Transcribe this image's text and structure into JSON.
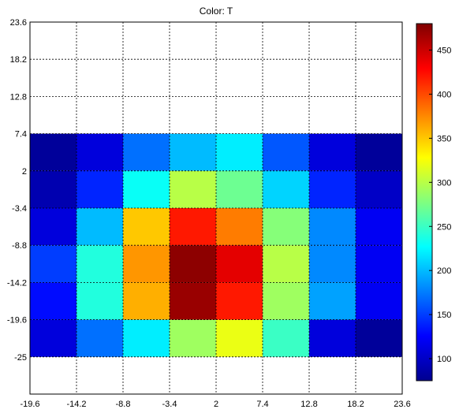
{
  "chart_data": {
    "type": "heatmap",
    "title": "Color: T",
    "xlabel": "",
    "ylabel": "",
    "x_ticks": [
      "-19.6",
      "-14.2",
      "-8.8",
      "-3.4",
      "2",
      "7.4",
      "12.8",
      "18.2",
      "23.6"
    ],
    "y_ticks": [
      "23.6",
      "18.2",
      "12.8",
      "7.4",
      "2",
      "-3.4",
      "-8.8",
      "-14.2",
      "-19.6",
      "-25"
    ],
    "xlim": [
      -19.6,
      23.6
    ],
    "ylim": [
      -30.4,
      23.6
    ],
    "grid": true,
    "colormap": "jet",
    "colorbar": {
      "range": [
        75,
        480
      ],
      "ticks": [
        "100",
        "150",
        "200",
        "250",
        "300",
        "350",
        "400",
        "450"
      ],
      "tick_values": [
        100,
        150,
        200,
        250,
        300,
        350,
        400,
        450
      ]
    },
    "cells": {
      "x_edges": [
        -19.6,
        -14.2,
        -8.8,
        -3.4,
        2,
        7.4,
        12.8,
        18.2,
        23.6
      ],
      "y_edges": [
        7.4,
        2,
        -3.4,
        -8.8,
        -14.2,
        -19.6,
        -25
      ],
      "values": [
        [
          80,
          110,
          170,
          200,
          220,
          160,
          110,
          80
        ],
        [
          90,
          140,
          230,
          300,
          270,
          210,
          140,
          100
        ],
        [
          110,
          200,
          350,
          420,
          380,
          280,
          180,
          120
        ],
        [
          150,
          240,
          370,
          475,
          440,
          300,
          180,
          120
        ],
        [
          130,
          240,
          360,
          470,
          420,
          290,
          190,
          120
        ],
        [
          110,
          170,
          220,
          290,
          320,
          250,
          110,
          80
        ]
      ]
    }
  }
}
